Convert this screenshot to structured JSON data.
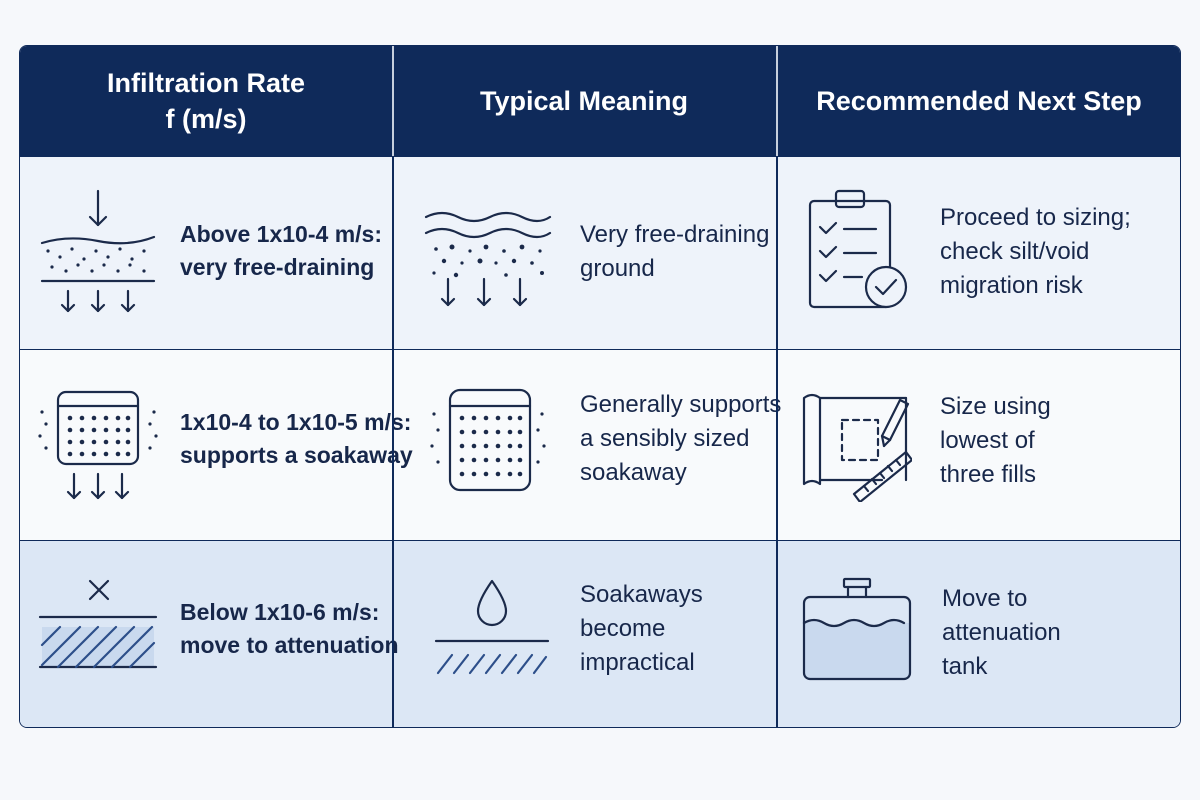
{
  "header": {
    "col1_line1": "Infiltration Rate",
    "col1_line2": "f (m/s)",
    "col2": "Typical Meaning",
    "col3": "Recommended Next Step"
  },
  "rows": [
    {
      "rate_line1": "Above 1x10-4 m/s:",
      "rate_line2": "very free-draining",
      "meaning_lines": [
        "Very free-draining",
        "ground"
      ],
      "step_lines": [
        "Proceed to sizing;",
        "check silt/void",
        "migration risk"
      ],
      "icons": [
        "infiltrating-soil-icon",
        "free-draining-ground-icon",
        "checklist-icon"
      ]
    },
    {
      "rate_line1": "1x10-4 to 1x10-5 m/s:",
      "rate_line2": "supports a soakaway",
      "meaning_lines": [
        "Generally supports",
        "a sensibly sized",
        "soakaway"
      ],
      "step_lines": [
        "Size using",
        "lowest of",
        "three fills"
      ],
      "icons": [
        "soakaway-crate-icon",
        "soakaway-crate-icon",
        "plan-ruler-pencil-icon"
      ]
    },
    {
      "rate_line1": "Below 1x10-6 m/s:",
      "rate_line2": "move to attenuation",
      "meaning_lines": [
        "Soakaways",
        "become",
        "impractical"
      ],
      "step_lines": [
        "Move to",
        "attenuation",
        "tank"
      ],
      "icons": [
        "impermeable-ground-icon",
        "water-drop-icon",
        "attenuation-tank-icon"
      ]
    }
  ],
  "colors": {
    "header_bg": "#0f2a5a",
    "row1_bg": "#eef3fa",
    "row2_bg": "#f8fafc",
    "row3_bg": "#dce7f5",
    "icon_stroke": "#1b2a4a"
  }
}
